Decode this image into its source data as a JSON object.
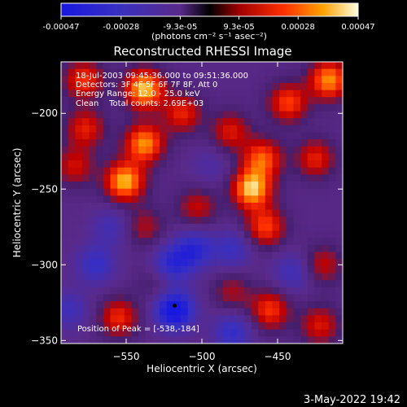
{
  "chart_data": {
    "type": "heatmap",
    "title": "Reconstructed RHESSI Image",
    "xlabel": "Heliocentric X (arcsec)",
    "ylabel": "Heliocentric Y (arcsec)",
    "xlim": [
      -593,
      -407
    ],
    "ylim": [
      -352,
      -166
    ],
    "x_ticks": [
      -550,
      -500,
      -450
    ],
    "y_ticks": [
      -200,
      -250,
      -300,
      -350
    ],
    "colorbar": {
      "tick_values": [
        -0.00047,
        -0.00028,
        -9.3e-05,
        9.3e-05,
        0.00028,
        0.00047
      ],
      "tick_labels": [
        "-0.00047",
        "-0.00028",
        "-9.3e-05",
        "9.3e-05",
        "0.00028",
        "0.00047"
      ],
      "unit_label": "(photons cm⁻² s⁻¹ asec⁻²)",
      "range": [
        -0.00047,
        0.00047
      ]
    },
    "info_lines": [
      "18-Jul-2003 09:45:36.000 to 09:51:36.000",
      "Detectors: 3F 4F 5F 6F 7F 8F, Att 0",
      "Energy Range: 12.0 - 25.0 keV",
      "Clean    Total counts: 2.69E+03"
    ],
    "peak_label": "Position of Peak = [-538,-184]",
    "peak": [
      -538,
      -184
    ],
    "sources": [
      {
        "x": -538,
        "y": -184,
        "value": 0.00047
      },
      {
        "x": -578,
        "y": -178,
        "value": 0.00028
      },
      {
        "x": -416,
        "y": -178,
        "value": 0.0004
      },
      {
        "x": -443,
        "y": -193,
        "value": 0.0003
      },
      {
        "x": -538,
        "y": -220,
        "value": 0.0004
      },
      {
        "x": -551,
        "y": -245,
        "value": 0.00045
      },
      {
        "x": -513,
        "y": -200,
        "value": 0.00025
      },
      {
        "x": -481,
        "y": -212,
        "value": 0.00022
      },
      {
        "x": -460,
        "y": -230,
        "value": 0.00033
      },
      {
        "x": -467,
        "y": -250,
        "value": 0.00047
      },
      {
        "x": -458,
        "y": -275,
        "value": 0.0003
      },
      {
        "x": -577,
        "y": -210,
        "value": 0.00024
      },
      {
        "x": -584,
        "y": -235,
        "value": 0.0002
      },
      {
        "x": -425,
        "y": -230,
        "value": 0.00024
      },
      {
        "x": -420,
        "y": -300,
        "value": 0.00018
      },
      {
        "x": -503,
        "y": -262,
        "value": 0.00018
      },
      {
        "x": -538,
        "y": -275,
        "value": 0.00015
      },
      {
        "x": -555,
        "y": -335,
        "value": 0.00026
      },
      {
        "x": -455,
        "y": -330,
        "value": 0.00028
      },
      {
        "x": -422,
        "y": -340,
        "value": 0.00022
      },
      {
        "x": -530,
        "y": -312,
        "value": 8e-05
      },
      {
        "x": -480,
        "y": -318,
        "value": 0.00014
      },
      {
        "x": -520,
        "y": -300,
        "value": -0.0003
      },
      {
        "x": -570,
        "y": -300,
        "value": -0.00025
      },
      {
        "x": -518,
        "y": -330,
        "value": -0.00047
      },
      {
        "x": -560,
        "y": -275,
        "value": -0.00018
      },
      {
        "x": -495,
        "y": -235,
        "value": -0.00012
      },
      {
        "x": -440,
        "y": -305,
        "value": -0.0002
      },
      {
        "x": -480,
        "y": -345,
        "value": -0.00026
      },
      {
        "x": -588,
        "y": -330,
        "value": -0.0002
      },
      {
        "x": -505,
        "y": -290,
        "value": -0.0003
      },
      {
        "x": -480,
        "y": -290,
        "value": -0.00022
      }
    ],
    "background_value": -8e-05,
    "marker": {
      "x": -518,
      "y": -327
    }
  },
  "timestamp": "3-May-2022 19:42"
}
